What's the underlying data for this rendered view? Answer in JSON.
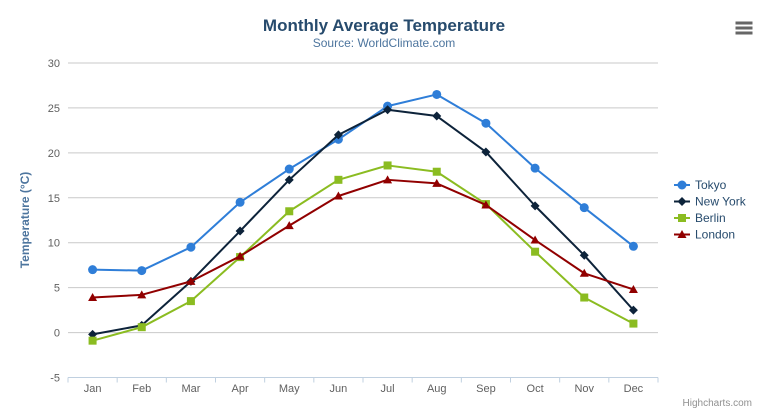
{
  "chart_data": {
    "type": "line",
    "title": "Monthly Average Temperature",
    "subtitle": "Source: WorldClimate.com",
    "categories": [
      "Jan",
      "Feb",
      "Mar",
      "Apr",
      "May",
      "Jun",
      "Jul",
      "Aug",
      "Sep",
      "Oct",
      "Nov",
      "Dec"
    ],
    "xlabel": "",
    "ylabel": "Temperature (°C)",
    "ylim": [
      -5,
      30
    ],
    "yticks": [
      -5,
      0,
      5,
      10,
      15,
      20,
      25,
      30
    ],
    "grid": true,
    "legend_position": "right",
    "series": [
      {
        "name": "Tokyo",
        "color": "#2f7ed8",
        "marker": "circle",
        "values": [
          7.0,
          6.9,
          9.5,
          14.5,
          18.2,
          21.5,
          25.2,
          26.5,
          23.3,
          18.3,
          13.9,
          9.6
        ]
      },
      {
        "name": "New York",
        "color": "#0d233a",
        "marker": "diamond",
        "values": [
          -0.2,
          0.8,
          5.7,
          11.3,
          17.0,
          22.0,
          24.8,
          24.1,
          20.1,
          14.1,
          8.6,
          2.5
        ]
      },
      {
        "name": "Berlin",
        "color": "#8bbc21",
        "marker": "square",
        "values": [
          -0.9,
          0.6,
          3.5,
          8.4,
          13.5,
          17.0,
          18.6,
          17.9,
          14.3,
          9.0,
          3.9,
          1.0
        ]
      },
      {
        "name": "London",
        "color": "#910000",
        "marker": "triangle",
        "values": [
          3.9,
          4.2,
          5.7,
          8.5,
          11.9,
          15.2,
          17.0,
          16.6,
          14.2,
          10.3,
          6.6,
          4.8
        ]
      }
    ]
  },
  "credits": {
    "label": "Highcharts.com"
  },
  "menu": {
    "icon": "hamburger-icon"
  },
  "colors": {
    "title": "#274b6d",
    "subtitle": "#4d759e",
    "axis_title": "#4d759e",
    "axis_labels": "#606060",
    "gridline": "#c9c9c9",
    "axis_line": "#c0d0e0",
    "legend_text": "#274b6d",
    "credits": "#909090",
    "menu_icon": "#666666",
    "background": "#ffffff"
  }
}
